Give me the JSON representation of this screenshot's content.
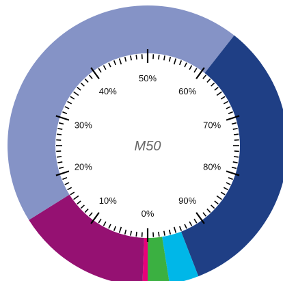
{
  "chart_data": {
    "type": "pie",
    "style": "donut",
    "center_label": "M50",
    "dial_tick_labels": [
      "0%",
      "10%",
      "20%",
      "30%",
      "40%",
      "50%",
      "60%",
      "70%",
      "80%",
      "90%"
    ],
    "slices": [
      {
        "share": 0.006,
        "color": "#e8007a"
      },
      {
        "share": 0.155,
        "color": "#951172"
      },
      {
        "share": 0.445,
        "color": "#8593c6"
      },
      {
        "share": 0.335,
        "color": "#1f3f85"
      },
      {
        "share": 0.034,
        "color": "#00b7e8"
      },
      {
        "share": 0.025,
        "color": "#3bb041"
      }
    ],
    "legend": "none"
  }
}
